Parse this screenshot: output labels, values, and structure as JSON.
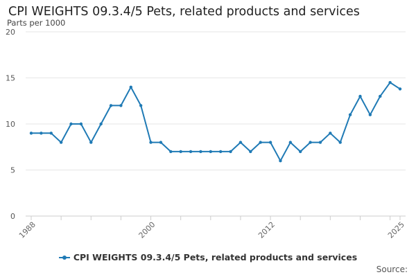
{
  "chart_data": {
    "type": "line",
    "title": "CPI WEIGHTS 09.3.4/5 Pets, related products and services",
    "ylabel": "Parts per 1000",
    "xlabel": "",
    "ylim": [
      0,
      20
    ],
    "xlim": [
      1988,
      2025
    ],
    "yticks": [
      "0",
      "5",
      "10",
      "15",
      "20"
    ],
    "xticks": [
      "1988",
      "2000",
      "2012",
      "2025"
    ],
    "grid": true,
    "legend_position": "bottom",
    "x": [
      1988,
      1989,
      1990,
      1991,
      1992,
      1993,
      1994,
      1995,
      1996,
      1997,
      1998,
      1999,
      2000,
      2001,
      2002,
      2003,
      2004,
      2005,
      2006,
      2007,
      2008,
      2009,
      2010,
      2011,
      2012,
      2013,
      2014,
      2015,
      2016,
      2017,
      2018,
      2019,
      2020,
      2021,
      2022,
      2023,
      2024,
      2025
    ],
    "series": [
      {
        "name": "CPI WEIGHTS 09.3.4/5 Pets, related products and services",
        "color": "#1f7ab5",
        "values": [
          9,
          9,
          9,
          8,
          10,
          10,
          8,
          10,
          12,
          12,
          14,
          12,
          8,
          8,
          7,
          7,
          7,
          7,
          7,
          7,
          7,
          8,
          7,
          8,
          8,
          6,
          8,
          7,
          8,
          8,
          9,
          8,
          11,
          13,
          11,
          13,
          14.5,
          13.8
        ]
      }
    ]
  },
  "source_label": "Source:"
}
